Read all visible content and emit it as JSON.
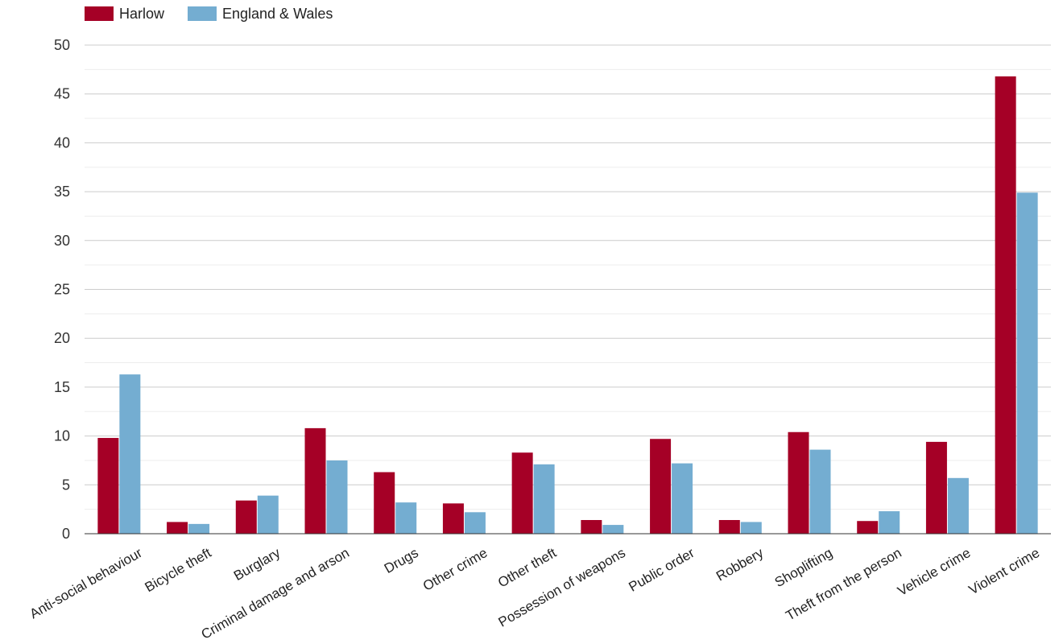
{
  "chart_data": {
    "type": "bar",
    "title": "",
    "xlabel": "",
    "ylabel": "",
    "ylim": [
      0,
      50
    ],
    "yticks": [
      0,
      5,
      10,
      15,
      20,
      25,
      30,
      35,
      40,
      45,
      50
    ],
    "grid": true,
    "legend_position": "top-left",
    "categories": [
      "Anti-social behaviour",
      "Bicycle theft",
      "Burglary",
      "Criminal damage and arson",
      "Drugs",
      "Other crime",
      "Other theft",
      "Possession of weapons",
      "Public order",
      "Robbery",
      "Shoplifting",
      "Theft from the person",
      "Vehicle crime",
      "Violent crime"
    ],
    "series": [
      {
        "name": "Harlow",
        "color": "#a50026",
        "values": [
          9.8,
          1.2,
          3.4,
          10.8,
          6.3,
          3.1,
          8.3,
          1.4,
          9.7,
          1.4,
          10.4,
          1.3,
          9.4,
          46.8
        ]
      },
      {
        "name": "England & Wales",
        "color": "#74add1",
        "values": [
          16.3,
          1.0,
          3.9,
          7.5,
          3.2,
          2.2,
          7.1,
          0.9,
          7.2,
          1.2,
          8.6,
          2.3,
          5.7,
          34.9
        ]
      }
    ]
  }
}
